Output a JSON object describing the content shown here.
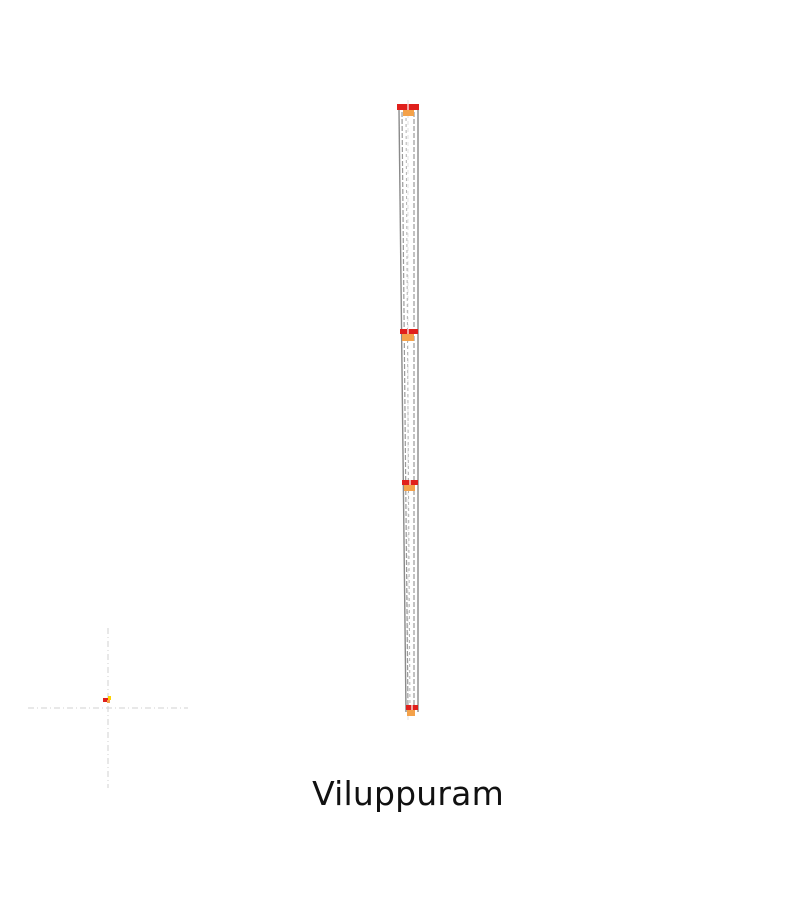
{
  "caption": "Viluppuram",
  "colors": {
    "station_red": "#e0201c",
    "station_orange": "#f4a24a",
    "station_yellow": "#ffd200",
    "track": "#7f7f7f",
    "guide": "#cfcfcf"
  },
  "stations": [
    {
      "name": "station-top"
    },
    {
      "name": "station-upper-middle"
    },
    {
      "name": "station-lower-middle"
    },
    {
      "name": "station-bottom"
    }
  ]
}
